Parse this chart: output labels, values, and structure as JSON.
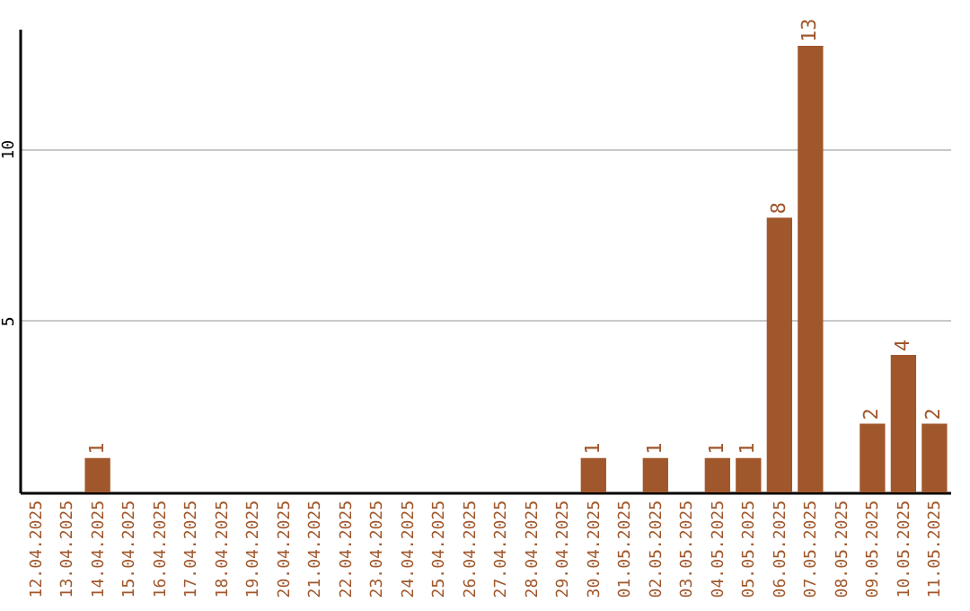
{
  "chart_data": {
    "type": "bar",
    "categories": [
      "12.04.2025",
      "13.04.2025",
      "14.04.2025",
      "15.04.2025",
      "16.04.2025",
      "17.04.2025",
      "18.04.2025",
      "19.04.2025",
      "20.04.2025",
      "21.04.2025",
      "22.04.2025",
      "23.04.2025",
      "24.04.2025",
      "25.04.2025",
      "26.04.2025",
      "27.04.2025",
      "28.04.2025",
      "29.04.2025",
      "30.04.2025",
      "01.05.2025",
      "02.05.2025",
      "03.05.2025",
      "04.05.2025",
      "05.05.2025",
      "06.05.2025",
      "07.05.2025",
      "08.05.2025",
      "09.05.2025",
      "10.05.2025",
      "11.05.2025"
    ],
    "values": [
      0,
      0,
      1,
      0,
      0,
      0,
      0,
      0,
      0,
      0,
      0,
      0,
      0,
      0,
      0,
      0,
      0,
      0,
      1,
      0,
      1,
      0,
      1,
      1,
      8,
      13,
      0,
      2,
      4,
      2
    ],
    "value_labels": [
      null,
      null,
      "1",
      null,
      null,
      null,
      null,
      null,
      null,
      null,
      null,
      null,
      null,
      null,
      null,
      null,
      null,
      null,
      "1",
      null,
      "1",
      null,
      "1",
      "1",
      "8",
      "13",
      null,
      "2",
      "4",
      "2"
    ],
    "color": "#a0572b",
    "ylim": [
      0,
      13.5
    ],
    "yticks": [
      5,
      10
    ],
    "grid": "y"
  }
}
